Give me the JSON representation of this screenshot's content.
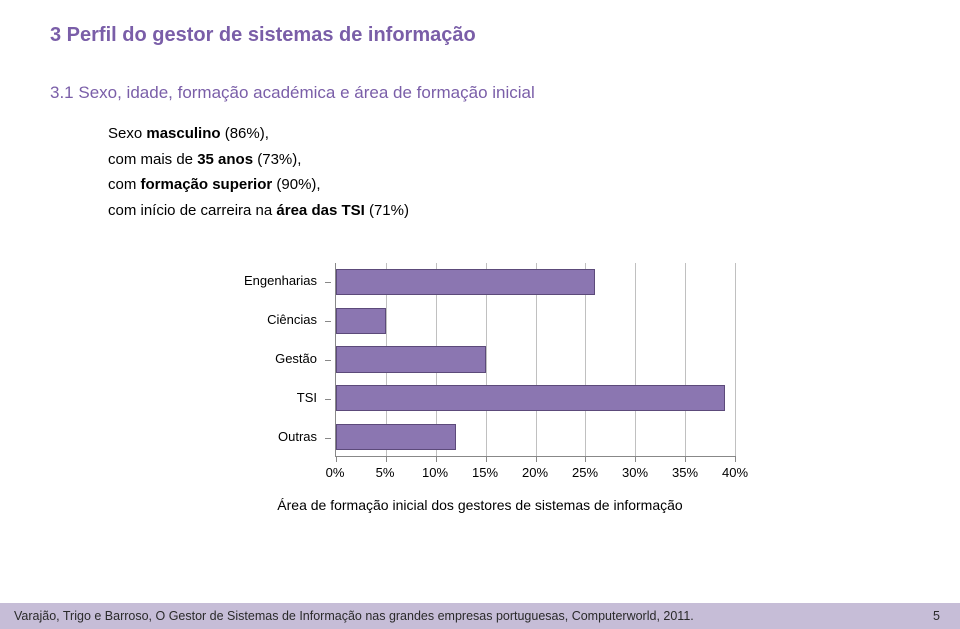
{
  "colors": {
    "heading_purple": "#7a5ea8",
    "bar_fill": "#8b76b1",
    "bar_border": "#5c4a7a",
    "footer_bg": "#c6bdd7"
  },
  "heading3": "3  Perfil do gestor de sistemas de informação",
  "heading31": "3.1  Sexo, idade, formação académica e área de formação inicial",
  "lines": {
    "l1a": "Sexo ",
    "l1b": "masculino",
    "l1c": " (86%),",
    "l2a": "com mais de ",
    "l2b": "35 anos",
    "l2c": " (73%),",
    "l3a": "com ",
    "l3b": "formação superior",
    "l3c": " (90%),",
    "l4a": "com início de carreira na ",
    "l4b": "área das TSI",
    "l4c": " (71%)"
  },
  "chart": {
    "type": "bar",
    "orientation": "horizontal",
    "categories": [
      "Engenharias",
      "Ciências",
      "Gestão",
      "TSI",
      "Outras"
    ],
    "values": [
      26,
      5,
      15,
      39,
      12
    ],
    "xlim": [
      0,
      40
    ],
    "xtick_step": 5,
    "xtick_labels": [
      "0%",
      "5%",
      "10%",
      "15%",
      "20%",
      "25%",
      "30%",
      "35%",
      "40%"
    ],
    "bar_color": "#8b76b1",
    "bar_border_color": "#5c4a7a",
    "grid_color": "#c0c0c0",
    "axis_color": "#888888",
    "category_fontsize": 13,
    "tick_fontsize": 13,
    "caption": "Área de formação inicial dos gestores de sistemas de informação"
  },
  "footer": {
    "text": "Varajão, Trigo e Barroso, O Gestor de Sistemas de Informação nas grandes empresas portuguesas, Computerworld, 2011.",
    "page": "5"
  }
}
